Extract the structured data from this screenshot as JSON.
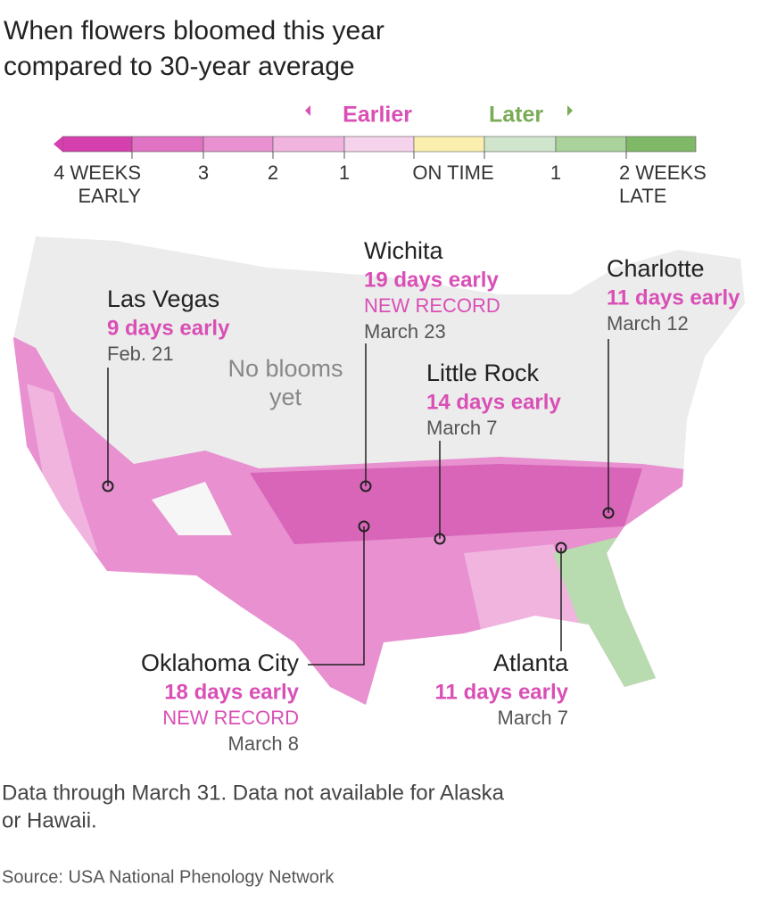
{
  "title": {
    "lines": [
      "When flowers bloomed this year",
      "compared to 30-year average"
    ]
  },
  "legend": {
    "earlier": "Earlier",
    "later": "Later",
    "colors": [
      "#d63fae",
      "#e072c4",
      "#e890d0",
      "#f0b4df",
      "#f6d3ec",
      "#fbefb0",
      "#cfe6cc",
      "#a9d39b",
      "#7fb866"
    ],
    "labels": [
      [
        "4 WEEKS",
        "EARLY"
      ],
      [
        "3"
      ],
      [
        "2"
      ],
      [
        "1"
      ],
      [
        "ON TIME"
      ],
      [
        "1"
      ],
      [
        "2 WEEKS",
        "LATE"
      ]
    ]
  },
  "no_blooms": [
    "No blooms",
    "yet"
  ],
  "cities": [
    {
      "name": "Las Vegas",
      "detail": "9 days early",
      "date": "Feb. 21"
    },
    {
      "name": "Wichita",
      "detail": "19 days early",
      "record": "NEW RECORD",
      "date": "March 23"
    },
    {
      "name": "Little Rock",
      "detail": "14 days early",
      "date": "March 7"
    },
    {
      "name": "Charlotte",
      "detail": "11 days early",
      "date": "March 12"
    },
    {
      "name": "Oklahoma City",
      "detail": "18 days early",
      "record": "NEW RECORD",
      "date": "March 8"
    },
    {
      "name": "Atlanta",
      "detail": "11 days early",
      "date": "March 7"
    }
  ],
  "note": [
    "Data through March 31. Data not available for Alaska",
    "or Hawaii."
  ],
  "source": "Source: USA National Phenology Network"
}
